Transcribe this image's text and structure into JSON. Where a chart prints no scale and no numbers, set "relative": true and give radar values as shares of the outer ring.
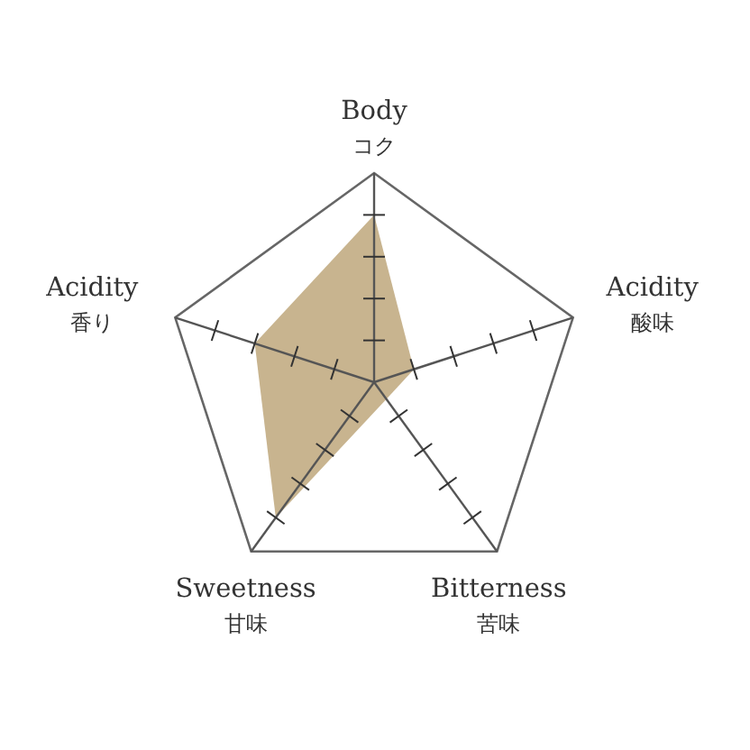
{
  "chart_data": {
    "type": "radar",
    "relative": true,
    "categories": [
      "Body\nコク",
      "Acidity\n酸味",
      "Bitterness\n苦味",
      "Sweetness\n甘味",
      "Acidity\n香り"
    ],
    "series": [
      {
        "color": "#c8b48f",
        "values": [
          0.8,
          0.2,
          0.1,
          0.8,
          0.6
        ]
      }
    ]
  }
}
